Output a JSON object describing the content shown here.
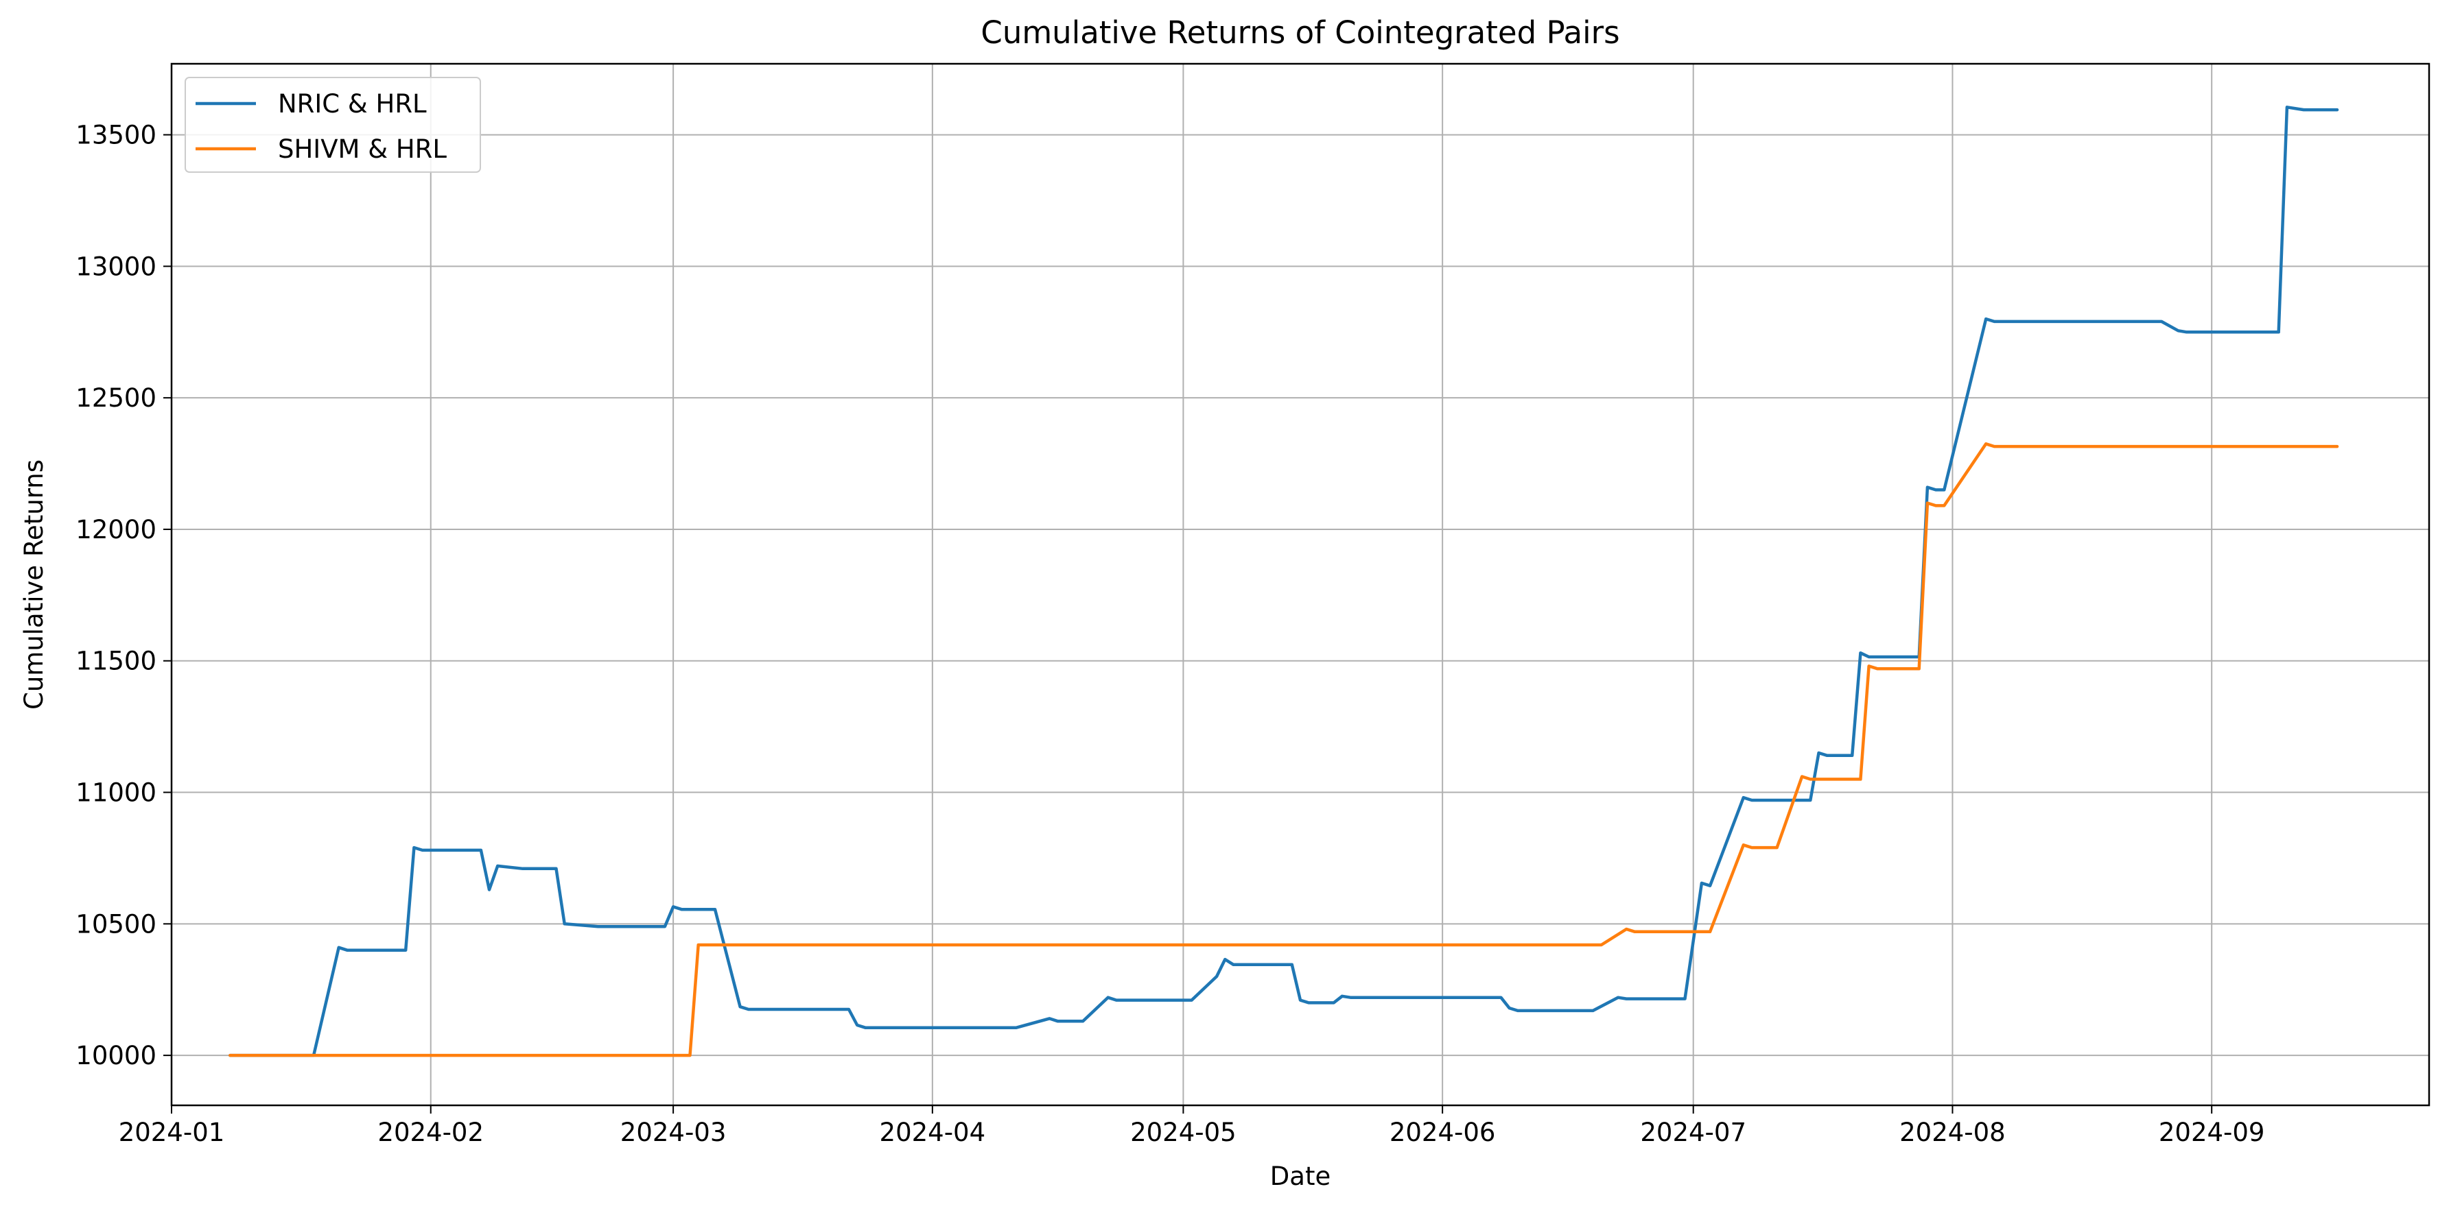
{
  "chart_data": {
    "type": "line",
    "title": "Cumulative Returns of Cointegrated Pairs",
    "xlabel": "Date",
    "ylabel": "Cumulative Returns",
    "xlim": [
      "2024-01-01",
      "2024-09-27"
    ],
    "ylim": [
      9810,
      13770
    ],
    "grid": true,
    "legend_position": "top-left",
    "x_ticks": [
      "2024-01-01",
      "2024-02-01",
      "2024-03-01",
      "2024-04-01",
      "2024-05-01",
      "2024-06-01",
      "2024-07-01",
      "2024-08-01",
      "2024-09-01"
    ],
    "x_tick_labels": [
      "2024-01",
      "2024-02",
      "2024-03",
      "2024-04",
      "2024-05",
      "2024-06",
      "2024-07",
      "2024-08",
      "2024-09"
    ],
    "y_ticks": [
      10000,
      10500,
      11000,
      11500,
      12000,
      12500,
      13000,
      13500
    ],
    "y_tick_labels": [
      "10000",
      "10500",
      "11000",
      "11500",
      "12000",
      "12500",
      "13000",
      "13500"
    ],
    "series": [
      {
        "name": "NRIC & HRL",
        "color": "#1f77b4",
        "points": [
          [
            "2024-01-08",
            10000
          ],
          [
            "2024-01-18",
            10000
          ],
          [
            "2024-01-21",
            10410
          ],
          [
            "2024-01-22",
            10400
          ],
          [
            "2024-01-29",
            10400
          ],
          [
            "2024-01-30",
            10790
          ],
          [
            "2024-01-31",
            10780
          ],
          [
            "2024-02-07",
            10780
          ],
          [
            "2024-02-08",
            10630
          ],
          [
            "2024-02-09",
            10720
          ],
          [
            "2024-02-12",
            10710
          ],
          [
            "2024-02-16",
            10710
          ],
          [
            "2024-02-17",
            10500
          ],
          [
            "2024-02-21",
            10490
          ],
          [
            "2024-02-29",
            10490
          ],
          [
            "2024-03-01",
            10565
          ],
          [
            "2024-03-02",
            10555
          ],
          [
            "2024-03-06",
            10555
          ],
          [
            "2024-03-09",
            10185
          ],
          [
            "2024-03-10",
            10175
          ],
          [
            "2024-03-22",
            10175
          ],
          [
            "2024-03-23",
            10115
          ],
          [
            "2024-03-24",
            10105
          ],
          [
            "2024-04-11",
            10105
          ],
          [
            "2024-04-15",
            10140
          ],
          [
            "2024-04-16",
            10130
          ],
          [
            "2024-04-19",
            10130
          ],
          [
            "2024-04-22",
            10220
          ],
          [
            "2024-04-23",
            10210
          ],
          [
            "2024-05-02",
            10210
          ],
          [
            "2024-05-05",
            10300
          ],
          [
            "2024-05-06",
            10365
          ],
          [
            "2024-05-07",
            10345
          ],
          [
            "2024-05-14",
            10345
          ],
          [
            "2024-05-15",
            10210
          ],
          [
            "2024-05-16",
            10200
          ],
          [
            "2024-05-19",
            10200
          ],
          [
            "2024-05-20",
            10225
          ],
          [
            "2024-05-21",
            10220
          ],
          [
            "2024-06-08",
            10220
          ],
          [
            "2024-06-09",
            10180
          ],
          [
            "2024-06-10",
            10170
          ],
          [
            "2024-06-19",
            10170
          ],
          [
            "2024-06-22",
            10220
          ],
          [
            "2024-06-23",
            10215
          ],
          [
            "2024-06-30",
            10215
          ],
          [
            "2024-07-02",
            10655
          ],
          [
            "2024-07-03",
            10645
          ],
          [
            "2024-07-07",
            10980
          ],
          [
            "2024-07-08",
            10970
          ],
          [
            "2024-07-15",
            10970
          ],
          [
            "2024-07-16",
            11150
          ],
          [
            "2024-07-17",
            11140
          ],
          [
            "2024-07-20",
            11140
          ],
          [
            "2024-07-21",
            11530
          ],
          [
            "2024-07-22",
            11515
          ],
          [
            "2024-07-28",
            11515
          ],
          [
            "2024-07-29",
            12160
          ],
          [
            "2024-07-30",
            12150
          ],
          [
            "2024-07-31",
            12150
          ],
          [
            "2024-08-05",
            12800
          ],
          [
            "2024-08-06",
            12790
          ],
          [
            "2024-08-26",
            12790
          ],
          [
            "2024-08-28",
            12755
          ],
          [
            "2024-08-29",
            12750
          ],
          [
            "2024-09-09",
            12750
          ],
          [
            "2024-09-10",
            13605
          ],
          [
            "2024-09-12",
            13595
          ],
          [
            "2024-09-16",
            13595
          ]
        ]
      },
      {
        "name": "SHIVM & HRL",
        "color": "#ff7f0e",
        "points": [
          [
            "2024-01-08",
            10000
          ],
          [
            "2024-03-03",
            10000
          ],
          [
            "2024-03-04",
            10420
          ],
          [
            "2024-06-20",
            10420
          ],
          [
            "2024-06-23",
            10480
          ],
          [
            "2024-06-24",
            10470
          ],
          [
            "2024-07-03",
            10470
          ],
          [
            "2024-07-07",
            10800
          ],
          [
            "2024-07-08",
            10790
          ],
          [
            "2024-07-11",
            10790
          ],
          [
            "2024-07-14",
            11060
          ],
          [
            "2024-07-15",
            11050
          ],
          [
            "2024-07-21",
            11050
          ],
          [
            "2024-07-22",
            11480
          ],
          [
            "2024-07-23",
            11470
          ],
          [
            "2024-07-28",
            11470
          ],
          [
            "2024-07-29",
            12100
          ],
          [
            "2024-07-30",
            12090
          ],
          [
            "2024-07-31",
            12090
          ],
          [
            "2024-08-05",
            12325
          ],
          [
            "2024-08-06",
            12315
          ],
          [
            "2024-09-16",
            12315
          ]
        ]
      }
    ]
  }
}
